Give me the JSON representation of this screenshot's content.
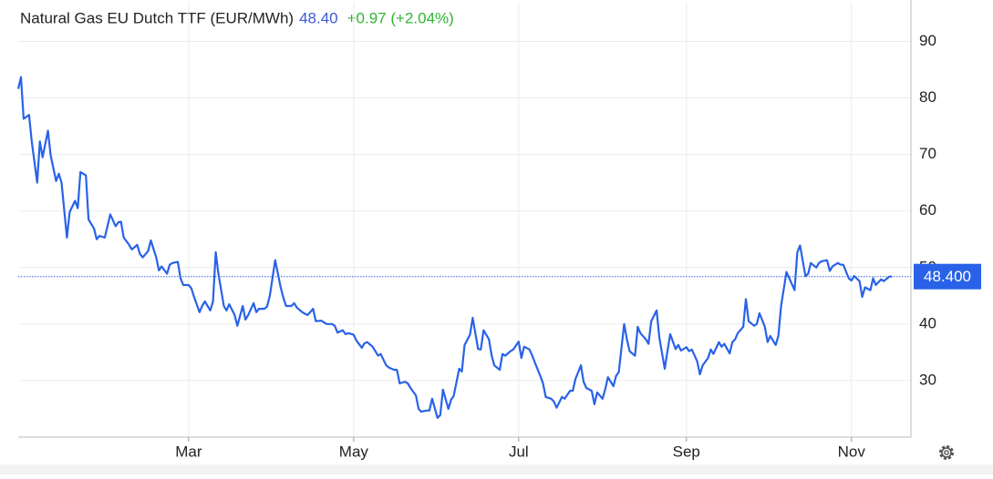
{
  "chart_data": {
    "type": "line",
    "title": "Natural Gas EU Dutch TTF (EUR/MWh)",
    "header_price": "48.40",
    "header_change": "+0.97 (+2.04%)",
    "color": "#2962e8",
    "grid": true,
    "xlim": [
      -3,
      327
    ],
    "xticks": [
      {
        "value": 60,
        "label": "Mar"
      },
      {
        "value": 121,
        "label": "May"
      },
      {
        "value": 182,
        "label": "Jul"
      },
      {
        "value": 244,
        "label": "Sep"
      },
      {
        "value": 305,
        "label": "Nov"
      }
    ],
    "ylim": [
      20,
      97
    ],
    "yticks": [
      30,
      40,
      50,
      60,
      70,
      80,
      90
    ],
    "current_line": {
      "value": 48.4,
      "label": "48.400"
    },
    "x": [
      -3,
      -2,
      -1,
      1,
      2,
      4,
      5,
      6,
      8,
      9,
      11,
      12,
      13,
      15,
      16,
      18,
      19,
      20,
      22,
      23,
      25,
      26,
      27,
      29,
      30,
      31,
      33,
      34,
      35,
      36,
      38,
      39,
      41,
      42,
      43,
      45,
      46,
      48,
      49,
      50,
      52,
      53,
      54,
      56,
      57,
      58,
      60,
      61,
      62,
      64,
      65,
      66,
      68,
      69,
      70,
      71,
      73,
      74,
      75,
      77,
      78,
      80,
      81,
      82,
      84,
      85,
      86,
      88,
      89,
      90,
      92,
      94,
      95,
      96,
      98,
      99,
      100,
      102,
      103,
      104,
      106,
      107,
      109,
      110,
      111,
      113,
      114,
      115,
      117,
      118,
      119,
      121,
      122,
      124,
      125,
      126,
      128,
      129,
      130,
      131,
      133,
      134,
      136,
      137,
      138,
      140,
      141,
      142,
      144,
      145,
      146,
      148,
      149,
      150,
      152,
      153,
      154,
      156,
      157,
      158,
      160,
      161,
      162,
      164,
      165,
      167,
      168,
      169,
      171,
      172,
      173,
      175,
      176,
      177,
      179,
      180,
      182,
      183,
      184,
      186,
      187,
      188,
      190,
      191,
      192,
      194,
      195,
      196,
      198,
      199,
      201,
      202,
      203,
      205,
      206,
      207,
      209,
      210,
      211,
      213,
      214,
      215,
      217,
      218,
      219,
      221,
      222,
      223,
      225,
      226,
      227,
      229,
      230,
      231,
      233,
      234,
      236,
      237,
      238,
      240,
      241,
      242,
      244,
      245,
      246,
      248,
      249,
      250,
      252,
      253,
      254,
      256,
      257,
      258,
      260,
      261,
      262,
      263,
      265,
      266,
      267,
      269,
      270,
      271,
      273,
      274,
      275,
      277,
      278,
      279,
      281,
      284,
      285,
      286,
      288,
      289,
      290,
      292,
      293,
      294,
      296,
      297,
      298,
      300,
      301,
      302,
      304,
      305,
      306,
      308,
      309,
      310,
      312,
      313,
      314,
      316,
      317,
      319,
      320
    ],
    "values": [
      81.6,
      83.7,
      76.3,
      77,
      72.3,
      65,
      72.3,
      69.5,
      74.2,
      69.8,
      65.3,
      66.6,
      65,
      55.3,
      59.8,
      61.8,
      60.5,
      66.9,
      66.3,
      58.5,
      56.9,
      55,
      55.6,
      55.3,
      57.3,
      59.4,
      57.3,
      58,
      58.1,
      55.3,
      54,
      53.2,
      54,
      52.4,
      51.8,
      52.9,
      54.8,
      51.8,
      49.5,
      50.2,
      48.9,
      50.5,
      50.8,
      51,
      48.1,
      46.9,
      46.9,
      46.3,
      44.8,
      42.1,
      43.2,
      44,
      42.4,
      44,
      52.7,
      48.9,
      43.2,
      42.4,
      43.5,
      41.6,
      39.7,
      43.2,
      40.8,
      41.6,
      43.7,
      42.1,
      42.7,
      42.7,
      43.1,
      45,
      51.3,
      46.5,
      44.7,
      43.2,
      43.2,
      43.7,
      42.9,
      42.1,
      41.8,
      41.6,
      42.7,
      40.5,
      40.6,
      40.3,
      40,
      40,
      39.7,
      38.5,
      38.9,
      38.2,
      38.4,
      38.1,
      37.1,
      35.8,
      36.6,
      36.8,
      36,
      35.2,
      34.4,
      34.7,
      32.7,
      32.3,
      31.9,
      31.9,
      29.5,
      29.8,
      29.5,
      28.7,
      27.4,
      25,
      24.5,
      24.7,
      24.7,
      26.8,
      23.4,
      23.9,
      28.4,
      25,
      26.6,
      27.3,
      32.1,
      31.6,
      36.3,
      38.1,
      41.1,
      35.6,
      35.5,
      38.9,
      37.3,
      34.4,
      32.7,
      31.9,
      34.7,
      34.4,
      35.2,
      35.5,
      36.9,
      34,
      36,
      35.5,
      34.4,
      33.2,
      30.8,
      29.5,
      27.1,
      26.8,
      26.3,
      25.2,
      27.1,
      26.8,
      28.2,
      28.2,
      30.3,
      32.7,
      29.8,
      28.7,
      28.2,
      25.8,
      27.9,
      26.8,
      28.5,
      30.6,
      29,
      30.8,
      31.5,
      40,
      37.3,
      35.2,
      34.4,
      39.5,
      38.4,
      37.3,
      36.5,
      40.5,
      42.4,
      37.6,
      32.1,
      35.2,
      38.2,
      35.6,
      36.3,
      35.3,
      35.9,
      35.2,
      35.5,
      33.4,
      31.1,
      32.7,
      34,
      35.5,
      34.7,
      36.8,
      36,
      36.5,
      34.8,
      36.8,
      37.3,
      38.4,
      39.5,
      44.4,
      40.5,
      39.7,
      40,
      41.9,
      39.5,
      36.8,
      37.9,
      36.3,
      37.9,
      43.2,
      49.2,
      46,
      52.7,
      53.9,
      48.5,
      48.9,
      50.8,
      50,
      50.8,
      51.1,
      51.3,
      49.4,
      50.2,
      50.8,
      50.5,
      50.5,
      48.1,
      47.7,
      48.5,
      47.6,
      44.8,
      46.5,
      46,
      48.1,
      46.9,
      47.9,
      47.6,
      48.4,
      48.4
    ]
  }
}
